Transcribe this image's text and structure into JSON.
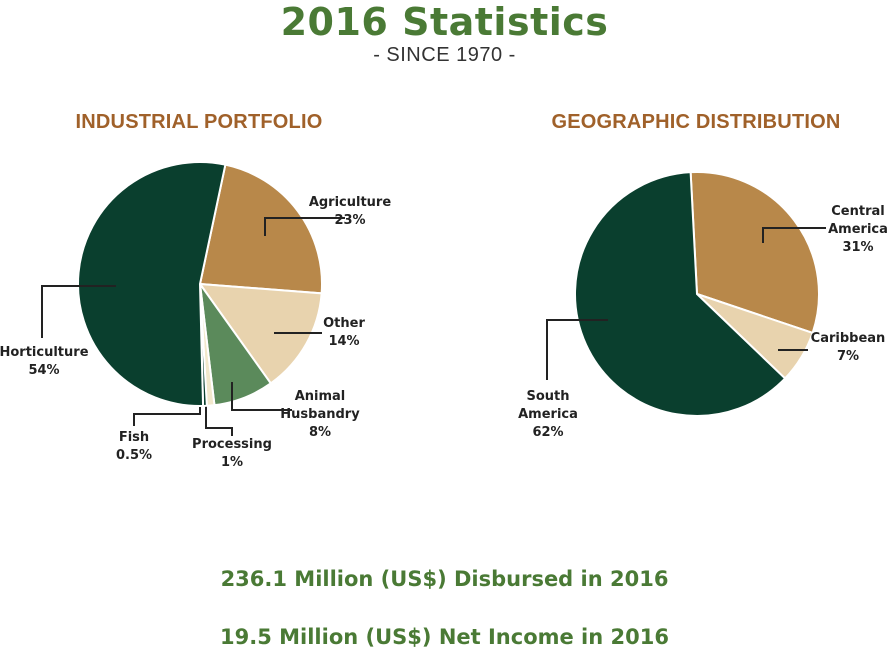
{
  "page": {
    "title": "2016 Statistics",
    "subtitle": "- SINCE 1970 -",
    "footer": [
      "236.1 Million (US$) Disbursed in 2016",
      "19.5 Million (US$) Net Income in 2016"
    ]
  },
  "colors": {
    "title_green": "#4a7a35",
    "heading_brown": "#a0612a",
    "dark_green": "#0a3f2e",
    "tan": "#b8884a",
    "light_tan": "#e8d3ae",
    "mid_green": "#5b8a5b",
    "pale": "#f2e8cc",
    "leader": "#222222"
  },
  "chart_data": [
    {
      "type": "pie",
      "title": "INDUSTRIAL PORTFOLIO",
      "slices": [
        {
          "label": "Agriculture",
          "value": 23,
          "display": [
            "Agriculture",
            "23%"
          ],
          "color": "#b8884a"
        },
        {
          "label": "Other",
          "value": 14,
          "display": [
            "Other",
            "14%"
          ],
          "color": "#e8d3ae"
        },
        {
          "label": "Animal Husbandry",
          "value": 8,
          "display": [
            "Animal",
            "Husbandry",
            "8%"
          ],
          "color": "#5b8a5b"
        },
        {
          "label": "Processing",
          "value": 1,
          "display": [
            "Processing",
            "1%"
          ],
          "color": "#f2e8cc"
        },
        {
          "label": "Fish",
          "value": 0.5,
          "display": [
            "Fish",
            "0.5%"
          ],
          "color": "#0a3f2e"
        },
        {
          "label": "Horticulture",
          "value": 54,
          "display": [
            "Horticulture",
            "54%"
          ],
          "color": "#0a3f2e"
        }
      ]
    },
    {
      "type": "pie",
      "title": "GEOGRAPHIC DISTRIBUTION",
      "slices": [
        {
          "label": "Central America",
          "value": 31,
          "display": [
            "Central",
            "America",
            "31%"
          ],
          "color": "#b8884a"
        },
        {
          "label": "Caribbean",
          "value": 7,
          "display": [
            "Caribbean",
            "7%"
          ],
          "color": "#e8d3ae"
        },
        {
          "label": "South America",
          "value": 62,
          "display": [
            "South",
            "America",
            "62%"
          ],
          "color": "#0a3f2e"
        }
      ]
    }
  ]
}
